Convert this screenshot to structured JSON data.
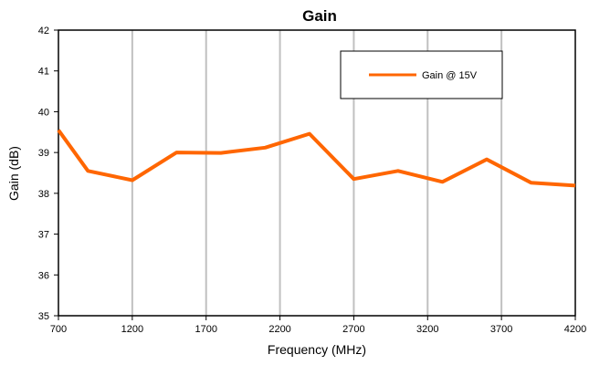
{
  "chart_data": {
    "type": "line",
    "title": "Gain",
    "xlabel": "Frequency (MHz)",
    "ylabel": "Gain (dB)",
    "xlim": [
      700,
      4200
    ],
    "ylim": [
      35,
      42
    ],
    "x_ticks": [
      "700",
      "1200",
      "1700",
      "2200",
      "2700",
      "3200",
      "3700",
      "4200"
    ],
    "y_ticks": [
      "35",
      "36",
      "37",
      "38",
      "39",
      "40",
      "41",
      "42"
    ],
    "grid": "vertical",
    "legend_position": "top-right",
    "series": [
      {
        "name": "Gain @ 15V",
        "color": "#ff6600",
        "x": [
          700,
          900,
          1200,
          1500,
          1800,
          2100,
          2400,
          2700,
          3000,
          3300,
          3600,
          3900,
          4200
        ],
        "y": [
          39.55,
          38.55,
          38.32,
          39.0,
          38.99,
          39.12,
          39.46,
          38.35,
          38.55,
          38.28,
          38.83,
          38.26,
          38.19
        ]
      }
    ]
  }
}
